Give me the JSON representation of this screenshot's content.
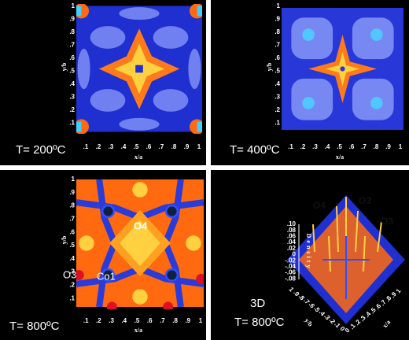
{
  "panels": [
    {
      "label": "T= 200ºC",
      "x_label": "x/a",
      "y_label": "y/b",
      "x_ticks": [
        ".1",
        ".2",
        ".3",
        ".4",
        ".5",
        ".6",
        ".7",
        ".8",
        ".9",
        "1"
      ],
      "y_ticks": [
        "1",
        ".9",
        ".8",
        ".7",
        ".6",
        ".5",
        ".4",
        ".3",
        ".2",
        ".1"
      ]
    },
    {
      "label": "T= 400ºC",
      "x_label": "x/a",
      "y_label": "y/b",
      "x_ticks": [
        ".1",
        ".2",
        ".3",
        ".4",
        ".5",
        ".6",
        ".7",
        ".8",
        ".9",
        "1"
      ],
      "y_ticks": [
        "1",
        ".9",
        ".8",
        ".7",
        ".6",
        ".5",
        ".4",
        ".3",
        ".2",
        ".1"
      ]
    },
    {
      "label": "T= 800ºC",
      "x_label": "x/a",
      "y_label": "y/b",
      "x_ticks": [
        ".1",
        ".2",
        ".3",
        ".4",
        ".5",
        ".6",
        ".7",
        ".8",
        ".9",
        "1"
      ],
      "y_ticks": [
        "1",
        ".9",
        ".8",
        ".7",
        ".6",
        ".5",
        ".4",
        ".3",
        ".2",
        ".1"
      ],
      "annotations": [
        "O4",
        "O3",
        "Co1"
      ]
    },
    {
      "title": "3D",
      "label": "T= 800ºC",
      "z_label": "Density",
      "z_ticks": [
        ".10",
        ".08",
        ".06",
        ".04",
        ".02",
        "0",
        "-.02",
        "-.04",
        "-.06",
        "-.08"
      ],
      "x_label": "x/a",
      "y_label": "y/b",
      "x_ticks": [
        "0",
        ".1",
        ".2",
        ".3",
        ".4",
        ".5",
        ".6",
        ".7",
        ".8",
        ".9",
        "1"
      ],
      "y_ticks": [
        "1",
        ".9",
        ".8",
        ".7",
        ".6",
        ".5",
        ".4",
        ".3",
        ".2",
        ".1",
        "0"
      ],
      "annotations": [
        "O4",
        "O3",
        "O3"
      ]
    }
  ]
}
